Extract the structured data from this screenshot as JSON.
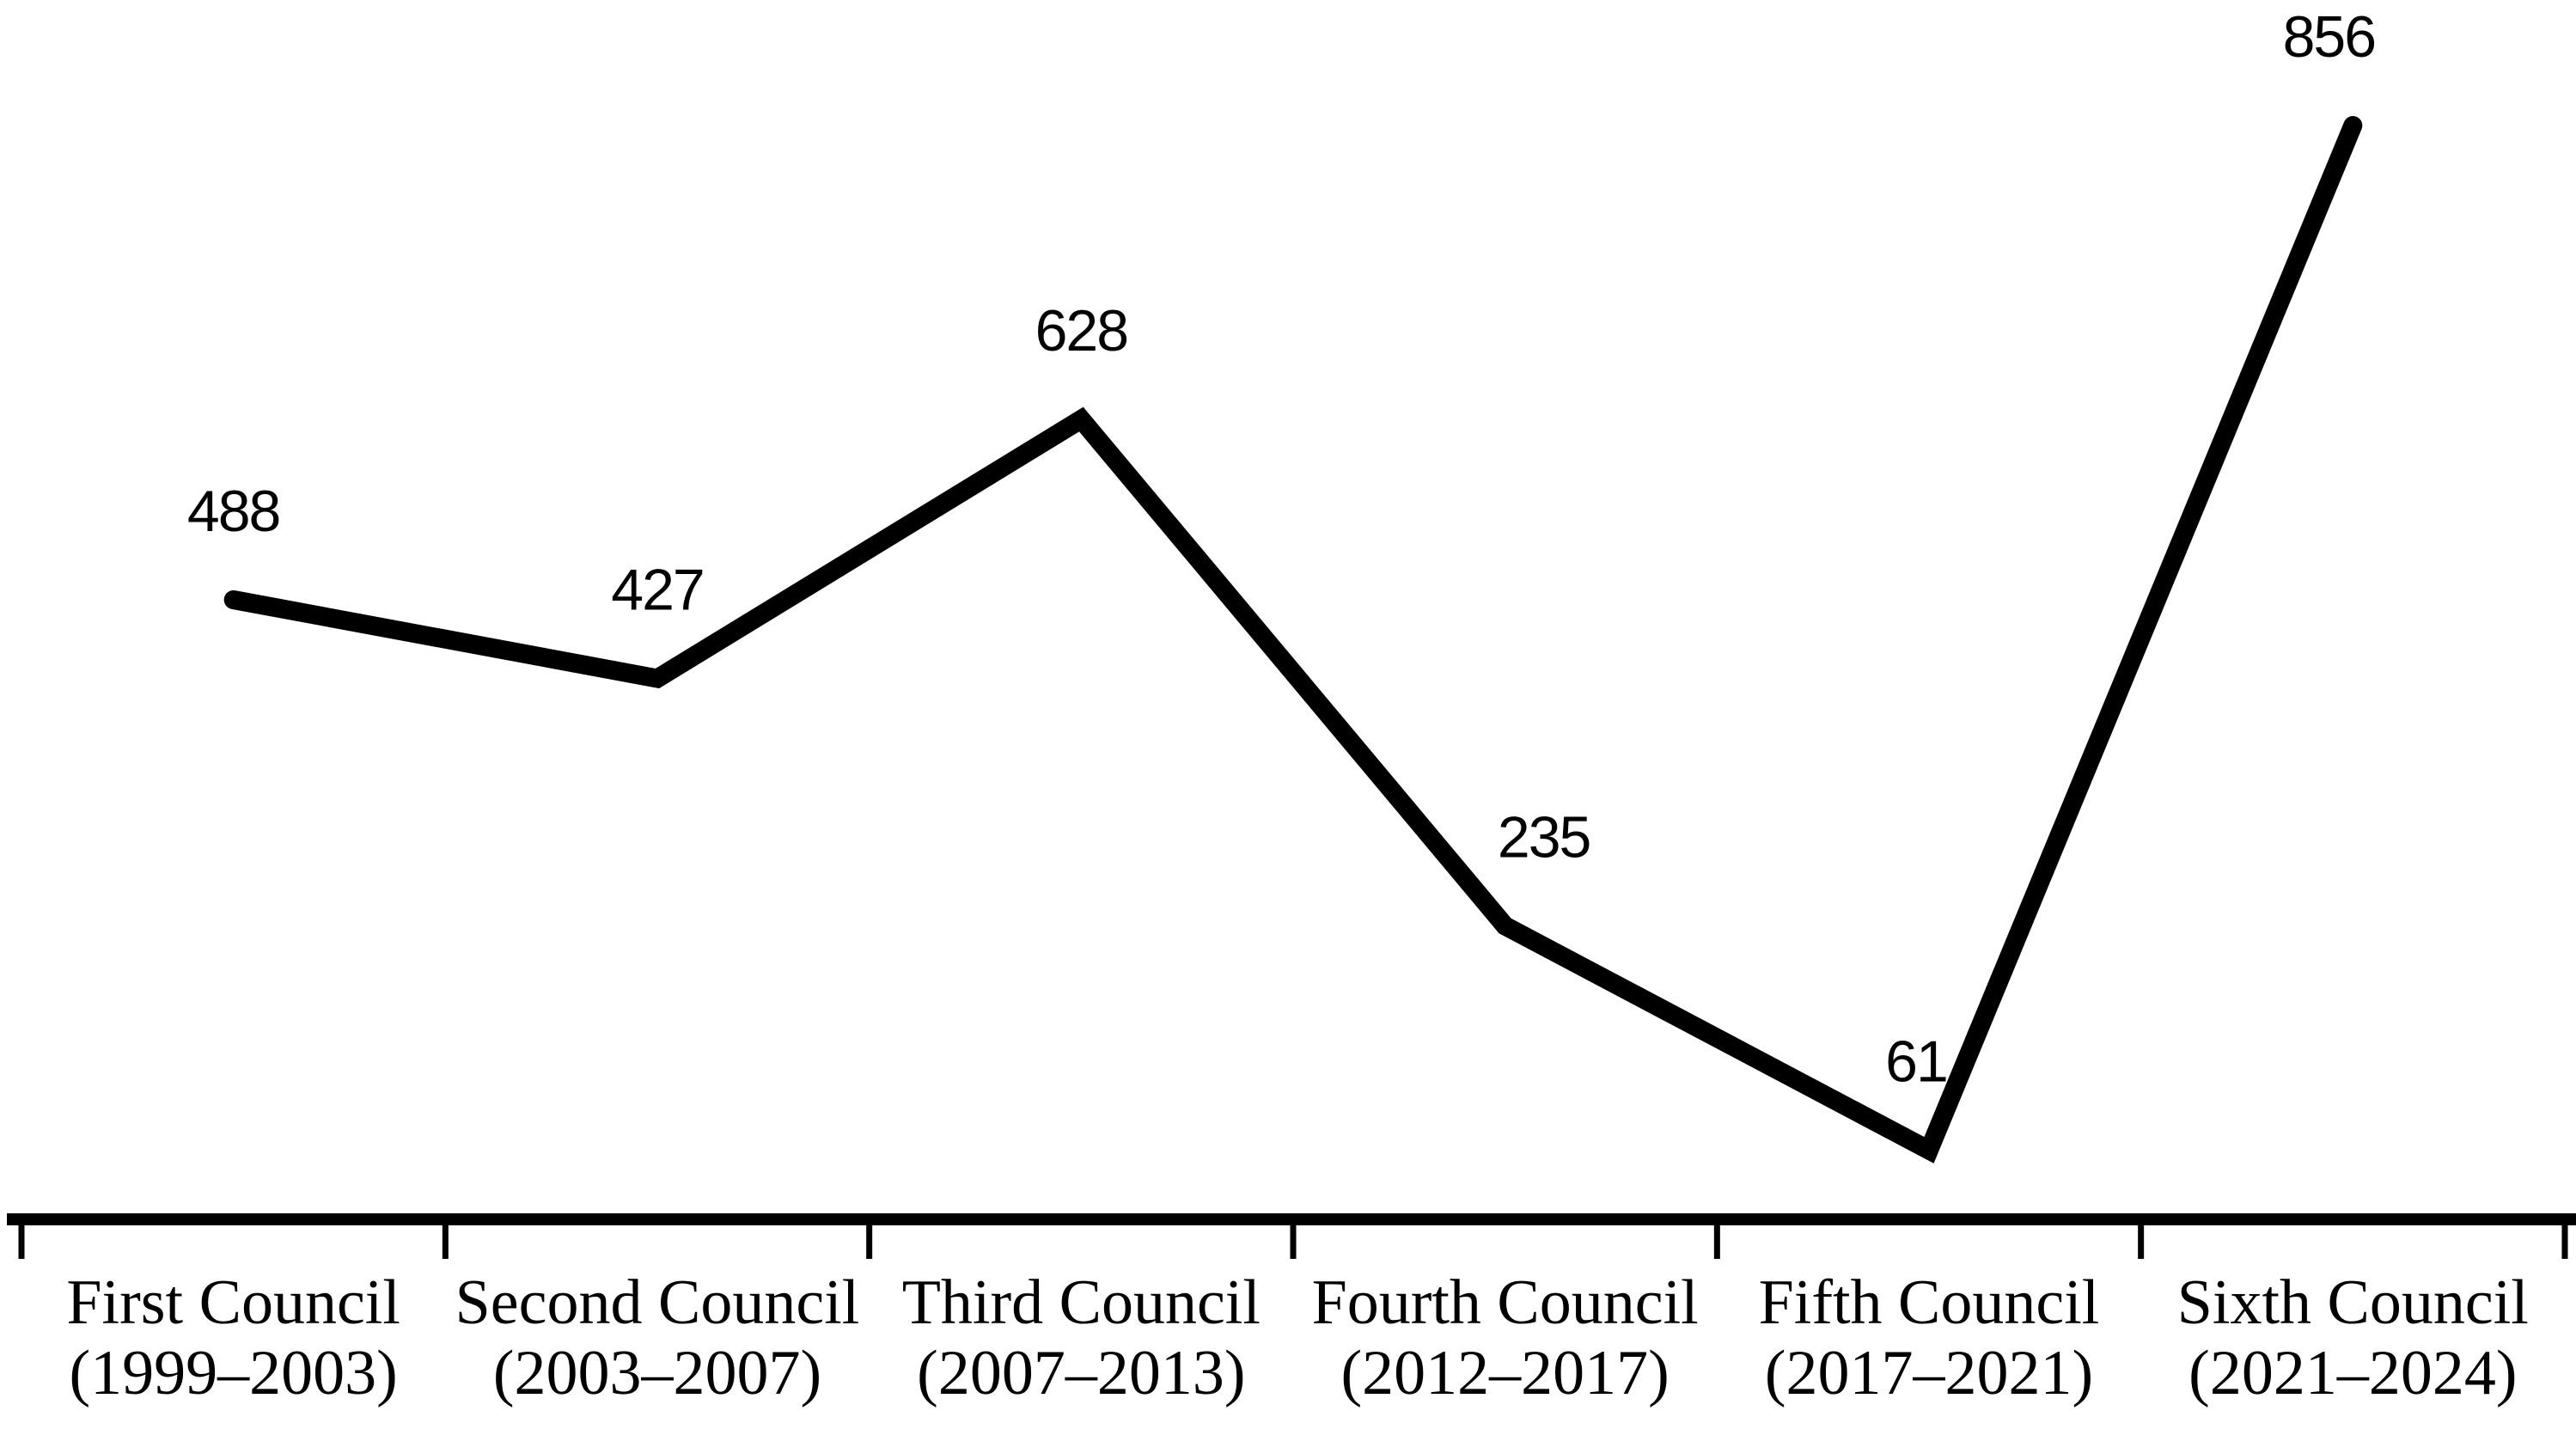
{
  "page": {
    "background": "#ffffff"
  },
  "chart_data": {
    "type": "line",
    "title": "",
    "xlabel": "",
    "ylabel": "",
    "categories": [
      {
        "name": "First Council",
        "years": "(1999–2003)"
      },
      {
        "name": "Second Council",
        "years": "(2003–2007)"
      },
      {
        "name": "Third Council",
        "years": "(2007–2013)"
      },
      {
        "name": "Fourth Council",
        "years": "(2012–2017)"
      },
      {
        "name": "Fifth Council",
        "years": "(2017–2021)"
      },
      {
        "name": "Sixth Council",
        "years": "(2021–2024)"
      }
    ],
    "values": [
      488,
      427,
      628,
      235,
      61,
      856
    ],
    "data_labels": [
      "488",
      "427",
      "628",
      "235",
      "61",
      "856"
    ],
    "ylim": [
      0,
      950
    ],
    "grid": false,
    "legend": "none",
    "line_color": "#000000",
    "axis_color": "#000000",
    "text_color": "#000000",
    "label_dx": [
      0,
      0,
      0,
      45,
      -15,
      -28
    ]
  }
}
